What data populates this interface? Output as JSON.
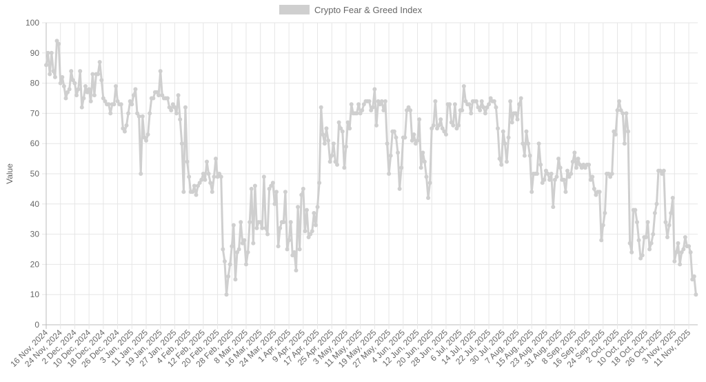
{
  "chart_data": {
    "type": "line",
    "title": "",
    "xlabel": "",
    "ylabel": "Value",
    "ylim": [
      0,
      100
    ],
    "yticks": [
      0,
      10,
      20,
      30,
      40,
      50,
      60,
      70,
      80,
      90,
      100
    ],
    "grid": true,
    "legend_position": "top",
    "x_tick_labels": [
      "16 Nov, 2024",
      "24 Nov, 2024",
      "2 Dec, 2024",
      "10 Dec, 2024",
      "18 Dec, 2024",
      "26 Dec, 2024",
      "3 Jan, 2025",
      "11 Jan, 2025",
      "19 Jan, 2025",
      "27 Jan, 2025",
      "4 Feb, 2025",
      "12 Feb, 2025",
      "20 Feb, 2025",
      "28 Feb, 2025",
      "8 Mar, 2025",
      "16 Mar, 2025",
      "24 Mar, 2025",
      "1 Apr, 2025",
      "9 Apr, 2025",
      "17 Apr, 2025",
      "25 Apr, 2025",
      "3 May, 2025",
      "11 May, 2025",
      "19 May, 2025",
      "27 May, 2025",
      "4 Jun, 2025",
      "12 Jun, 2025",
      "20 Jun, 2025",
      "28 Jun, 2025",
      "6 Jul, 2025",
      "14 Jul, 2025",
      "22 Jul, 2025",
      "30 Jul, 2025",
      "7 Aug, 2025",
      "15 Aug, 2025",
      "23 Aug, 2025",
      "31 Aug, 2025",
      "8 Sep, 2025",
      "16 Sep, 2025",
      "24 Sep, 2025",
      "2 Oct, 2025",
      "10 Oct, 2025",
      "18 Oct, 2025",
      "26 Oct, 2025",
      "3 Nov, 2025",
      "11 Nov, 2025"
    ],
    "series": [
      {
        "name": "Crypto Fear & Greed Index",
        "color": "#cfcfcf",
        "values": [
          86,
          90,
          83,
          90,
          84,
          82,
          94,
          93,
          80,
          82,
          79,
          75,
          77,
          78,
          84,
          81,
          80,
          76,
          78,
          84,
          72,
          75,
          79,
          77,
          78,
          74,
          83,
          76,
          83,
          83,
          87,
          81,
          75,
          74,
          73,
          73,
          70,
          73,
          73,
          79,
          74,
          73,
          73,
          65,
          64,
          66,
          70,
          74,
          73,
          76,
          78,
          70,
          69,
          50,
          69,
          62,
          61,
          63,
          70,
          75,
          75,
          77,
          77,
          76,
          84,
          76,
          75,
          75,
          75,
          72,
          71,
          73,
          72,
          70,
          76,
          68,
          60,
          44,
          72,
          54,
          49,
          44,
          44,
          46,
          43,
          46,
          47,
          48,
          50,
          48,
          54,
          50,
          47,
          44,
          49,
          55,
          49,
          50,
          49,
          25,
          21,
          10,
          16,
          20,
          26,
          33,
          15,
          24,
          25,
          34,
          27,
          28,
          20,
          24,
          34,
          45,
          27,
          46,
          32,
          34,
          34,
          32,
          49,
          32,
          30,
          45,
          46,
          47,
          40,
          44,
          26,
          32,
          34,
          34,
          44,
          25,
          28,
          34,
          23,
          24,
          18,
          39,
          25,
          43,
          45,
          31,
          38,
          29,
          30,
          31,
          37,
          33,
          39,
          47,
          72,
          63,
          60,
          65,
          61,
          54,
          56,
          60,
          54,
          53,
          67,
          65,
          64,
          52,
          59,
          67,
          65,
          73,
          70,
          70,
          70,
          73,
          70,
          71,
          73,
          74,
          74,
          74,
          71,
          72,
          78,
          66,
          74,
          73,
          74,
          71,
          74,
          60,
          50,
          56,
          64,
          64,
          62,
          57,
          45,
          52,
          62,
          62,
          71,
          72,
          71,
          61,
          63,
          60,
          61,
          68,
          52,
          57,
          54,
          49,
          42,
          47,
          65,
          66,
          74,
          65,
          66,
          68,
          65,
          64,
          63,
          73,
          73,
          67,
          66,
          73,
          65,
          66,
          71,
          71,
          79,
          74,
          73,
          73,
          70,
          74,
          74,
          74,
          72,
          71,
          74,
          72,
          70,
          72,
          73,
          75,
          74,
          74,
          72,
          65,
          55,
          53,
          64,
          60,
          54,
          62,
          74,
          67,
          70,
          70,
          68,
          73,
          75,
          60,
          56,
          64,
          60,
          56,
          44,
          50,
          50,
          50,
          60,
          53,
          47,
          48,
          51,
          50,
          48,
          50,
          39,
          48,
          49,
          55,
          52,
          48,
          48,
          44,
          51,
          49,
          50,
          54,
          57,
          52,
          55,
          53,
          52,
          53,
          52,
          53,
          53,
          48,
          49,
          45,
          43,
          44,
          44,
          28,
          33,
          37,
          50,
          50,
          49,
          50,
          64,
          63,
          71,
          74,
          71,
          70,
          60,
          70,
          64,
          27,
          24,
          38,
          38,
          34,
          28,
          22,
          23,
          29,
          29,
          34,
          25,
          27,
          30,
          37,
          40,
          51,
          51,
          50,
          51,
          34,
          29,
          33,
          37,
          42,
          21,
          24,
          27,
          20,
          24,
          25,
          29,
          26,
          26,
          24,
          15,
          16,
          10
        ]
      }
    ]
  }
}
